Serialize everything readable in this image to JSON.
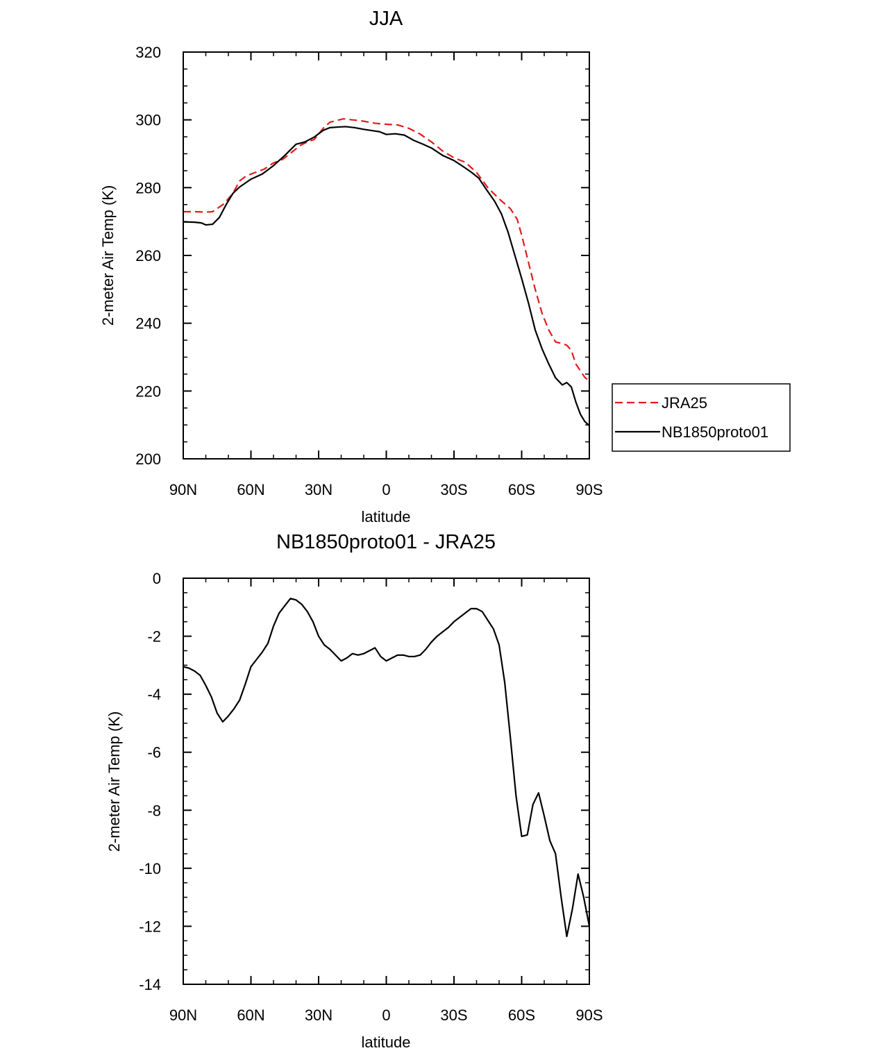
{
  "chart_data": [
    {
      "type": "line",
      "title": "JJA",
      "xlabel": "latitude",
      "ylabel": "2-meter Air Temp (K)",
      "xlim": [
        90,
        -90
      ],
      "ylim": [
        200,
        320
      ],
      "xticks": [
        90,
        60,
        30,
        0,
        -30,
        -60,
        -90
      ],
      "xtick_labels": [
        "90N",
        "60N",
        "30N",
        "0",
        "30S",
        "60S",
        "90S"
      ],
      "yticks": [
        200,
        220,
        240,
        260,
        280,
        300,
        320
      ],
      "ytick_labels": [
        "200",
        "220",
        "240",
        "260",
        "280",
        "300",
        "320"
      ],
      "legend_position": "right",
      "series": [
        {
          "name": "JRA25",
          "color": "#e41a1c",
          "dash": "dashed",
          "x": [
            90,
            85,
            80,
            77,
            72,
            68,
            65,
            62,
            58,
            54,
            50,
            46,
            42,
            38,
            35,
            32,
            30,
            28,
            25,
            22,
            19,
            15,
            10,
            5,
            0,
            -5,
            -10,
            -15,
            -20,
            -25,
            -30,
            -35,
            -40,
            -45,
            -50,
            -55,
            -58,
            -60,
            -63,
            -66,
            -69,
            -72,
            -75,
            -78,
            -80,
            -82,
            -84,
            -86,
            -88,
            -90
          ],
          "values": [
            272.9,
            272.9,
            272.8,
            272.9,
            275.2,
            278.3,
            282.0,
            283.5,
            284.5,
            285.5,
            287.3,
            288.3,
            290.4,
            292.5,
            293.5,
            294.2,
            295.8,
            297.5,
            299.3,
            299.8,
            300.3,
            300.0,
            299.6,
            299.0,
            298.7,
            298.5,
            297.5,
            295.8,
            293.5,
            290.8,
            288.8,
            287.5,
            284.5,
            280.0,
            276.7,
            273.8,
            270.7,
            266.0,
            258.0,
            250.0,
            243.0,
            238.0,
            234.5,
            234.0,
            233.5,
            232.0,
            228.0,
            226.0,
            224.0,
            223.0
          ]
        },
        {
          "name": "NB1850proto01",
          "color": "#000000",
          "dash": "solid",
          "x": [
            90,
            85,
            82,
            80,
            77,
            74,
            71,
            68,
            65,
            60,
            55,
            50,
            45,
            40,
            36,
            32,
            28,
            25,
            21,
            18,
            14,
            10,
            6,
            3,
            0,
            -4,
            -8,
            -12,
            -16,
            -20,
            -25,
            -30,
            -35,
            -38,
            -41,
            -44,
            -48,
            -51,
            -54,
            -57,
            -60,
            -63,
            -66,
            -69,
            -72,
            -75,
            -78,
            -80,
            -82,
            -84,
            -86,
            -88,
            -90
          ],
          "values": [
            269.9,
            269.8,
            269.6,
            269.0,
            269.2,
            271.2,
            275.0,
            278.3,
            280.2,
            282.5,
            284.0,
            286.5,
            289.5,
            292.8,
            293.5,
            294.9,
            296.9,
            297.7,
            297.9,
            298.0,
            297.7,
            297.2,
            296.8,
            296.5,
            295.7,
            295.9,
            295.5,
            294.0,
            292.9,
            291.7,
            289.5,
            288.0,
            285.8,
            284.4,
            282.8,
            279.8,
            276.0,
            272.3,
            266.8,
            260.0,
            253.2,
            246.0,
            238.0,
            232.5,
            228.0,
            223.9,
            221.8,
            222.5,
            221.2,
            216.8,
            213.2,
            211.0,
            209.8
          ]
        }
      ]
    },
    {
      "type": "line",
      "title": "NB1850proto01 - JRA25",
      "xlabel": "latitude",
      "ylabel": "2-meter Air Temp (K)",
      "xlim": [
        90,
        -90
      ],
      "ylim": [
        -14,
        0
      ],
      "xticks": [
        90,
        60,
        30,
        0,
        -30,
        -60,
        -90
      ],
      "xtick_labels": [
        "90N",
        "60N",
        "30N",
        "0",
        "30S",
        "60S",
        "90S"
      ],
      "yticks": [
        -14,
        -12,
        -10,
        -8,
        -6,
        -4,
        -2,
        0
      ],
      "ytick_labels": [
        "-14",
        "-12",
        "-10",
        "-8",
        "-6",
        "-4",
        "-2",
        "0"
      ],
      "series": [
        {
          "name": "NB1850proto01 - JRA25",
          "color": "#000000",
          "dash": "solid",
          "x": [
            90,
            87.5,
            85,
            82.5,
            80,
            77.5,
            75,
            72.5,
            70,
            67.5,
            65,
            62.5,
            60,
            57.5,
            55,
            52.5,
            50,
            47.5,
            45,
            42.5,
            40,
            37.5,
            35,
            32.5,
            30,
            27.5,
            25,
            22.5,
            20,
            17.5,
            15,
            12.5,
            10,
            7.5,
            5,
            2.5,
            0,
            -2.5,
            -5,
            -7.5,
            -10,
            -12.5,
            -15,
            -17.5,
            -20,
            -22.5,
            -25,
            -27.5,
            -30,
            -32.5,
            -35,
            -37.5,
            -40,
            -42.5,
            -45,
            -47.5,
            -50,
            -52.5,
            -55,
            -57.5,
            -60,
            -62.5,
            -65,
            -67.5,
            -70,
            -72.5,
            -75,
            -77.5,
            -80,
            -82.5,
            -85,
            -87.5,
            -90
          ],
          "values": [
            -3.05,
            -3.1,
            -3.2,
            -3.35,
            -3.7,
            -4.1,
            -4.65,
            -4.95,
            -4.75,
            -4.5,
            -4.2,
            -3.65,
            -3.05,
            -2.8,
            -2.55,
            -2.25,
            -1.65,
            -1.2,
            -0.95,
            -0.7,
            -0.75,
            -0.9,
            -1.15,
            -1.5,
            -2.0,
            -2.3,
            -2.45,
            -2.65,
            -2.85,
            -2.75,
            -2.6,
            -2.65,
            -2.6,
            -2.5,
            -2.4,
            -2.7,
            -2.85,
            -2.75,
            -2.65,
            -2.65,
            -2.7,
            -2.7,
            -2.65,
            -2.45,
            -2.2,
            -2.0,
            -1.85,
            -1.7,
            -1.5,
            -1.35,
            -1.2,
            -1.05,
            -1.05,
            -1.15,
            -1.45,
            -1.75,
            -2.3,
            -3.6,
            -5.5,
            -7.5,
            -8.9,
            -8.85,
            -7.8,
            -7.4,
            -8.2,
            -9.05,
            -9.5,
            -11.0,
            -12.35,
            -11.4,
            -10.2,
            -11.0,
            -12.0
          ]
        }
      ]
    }
  ]
}
